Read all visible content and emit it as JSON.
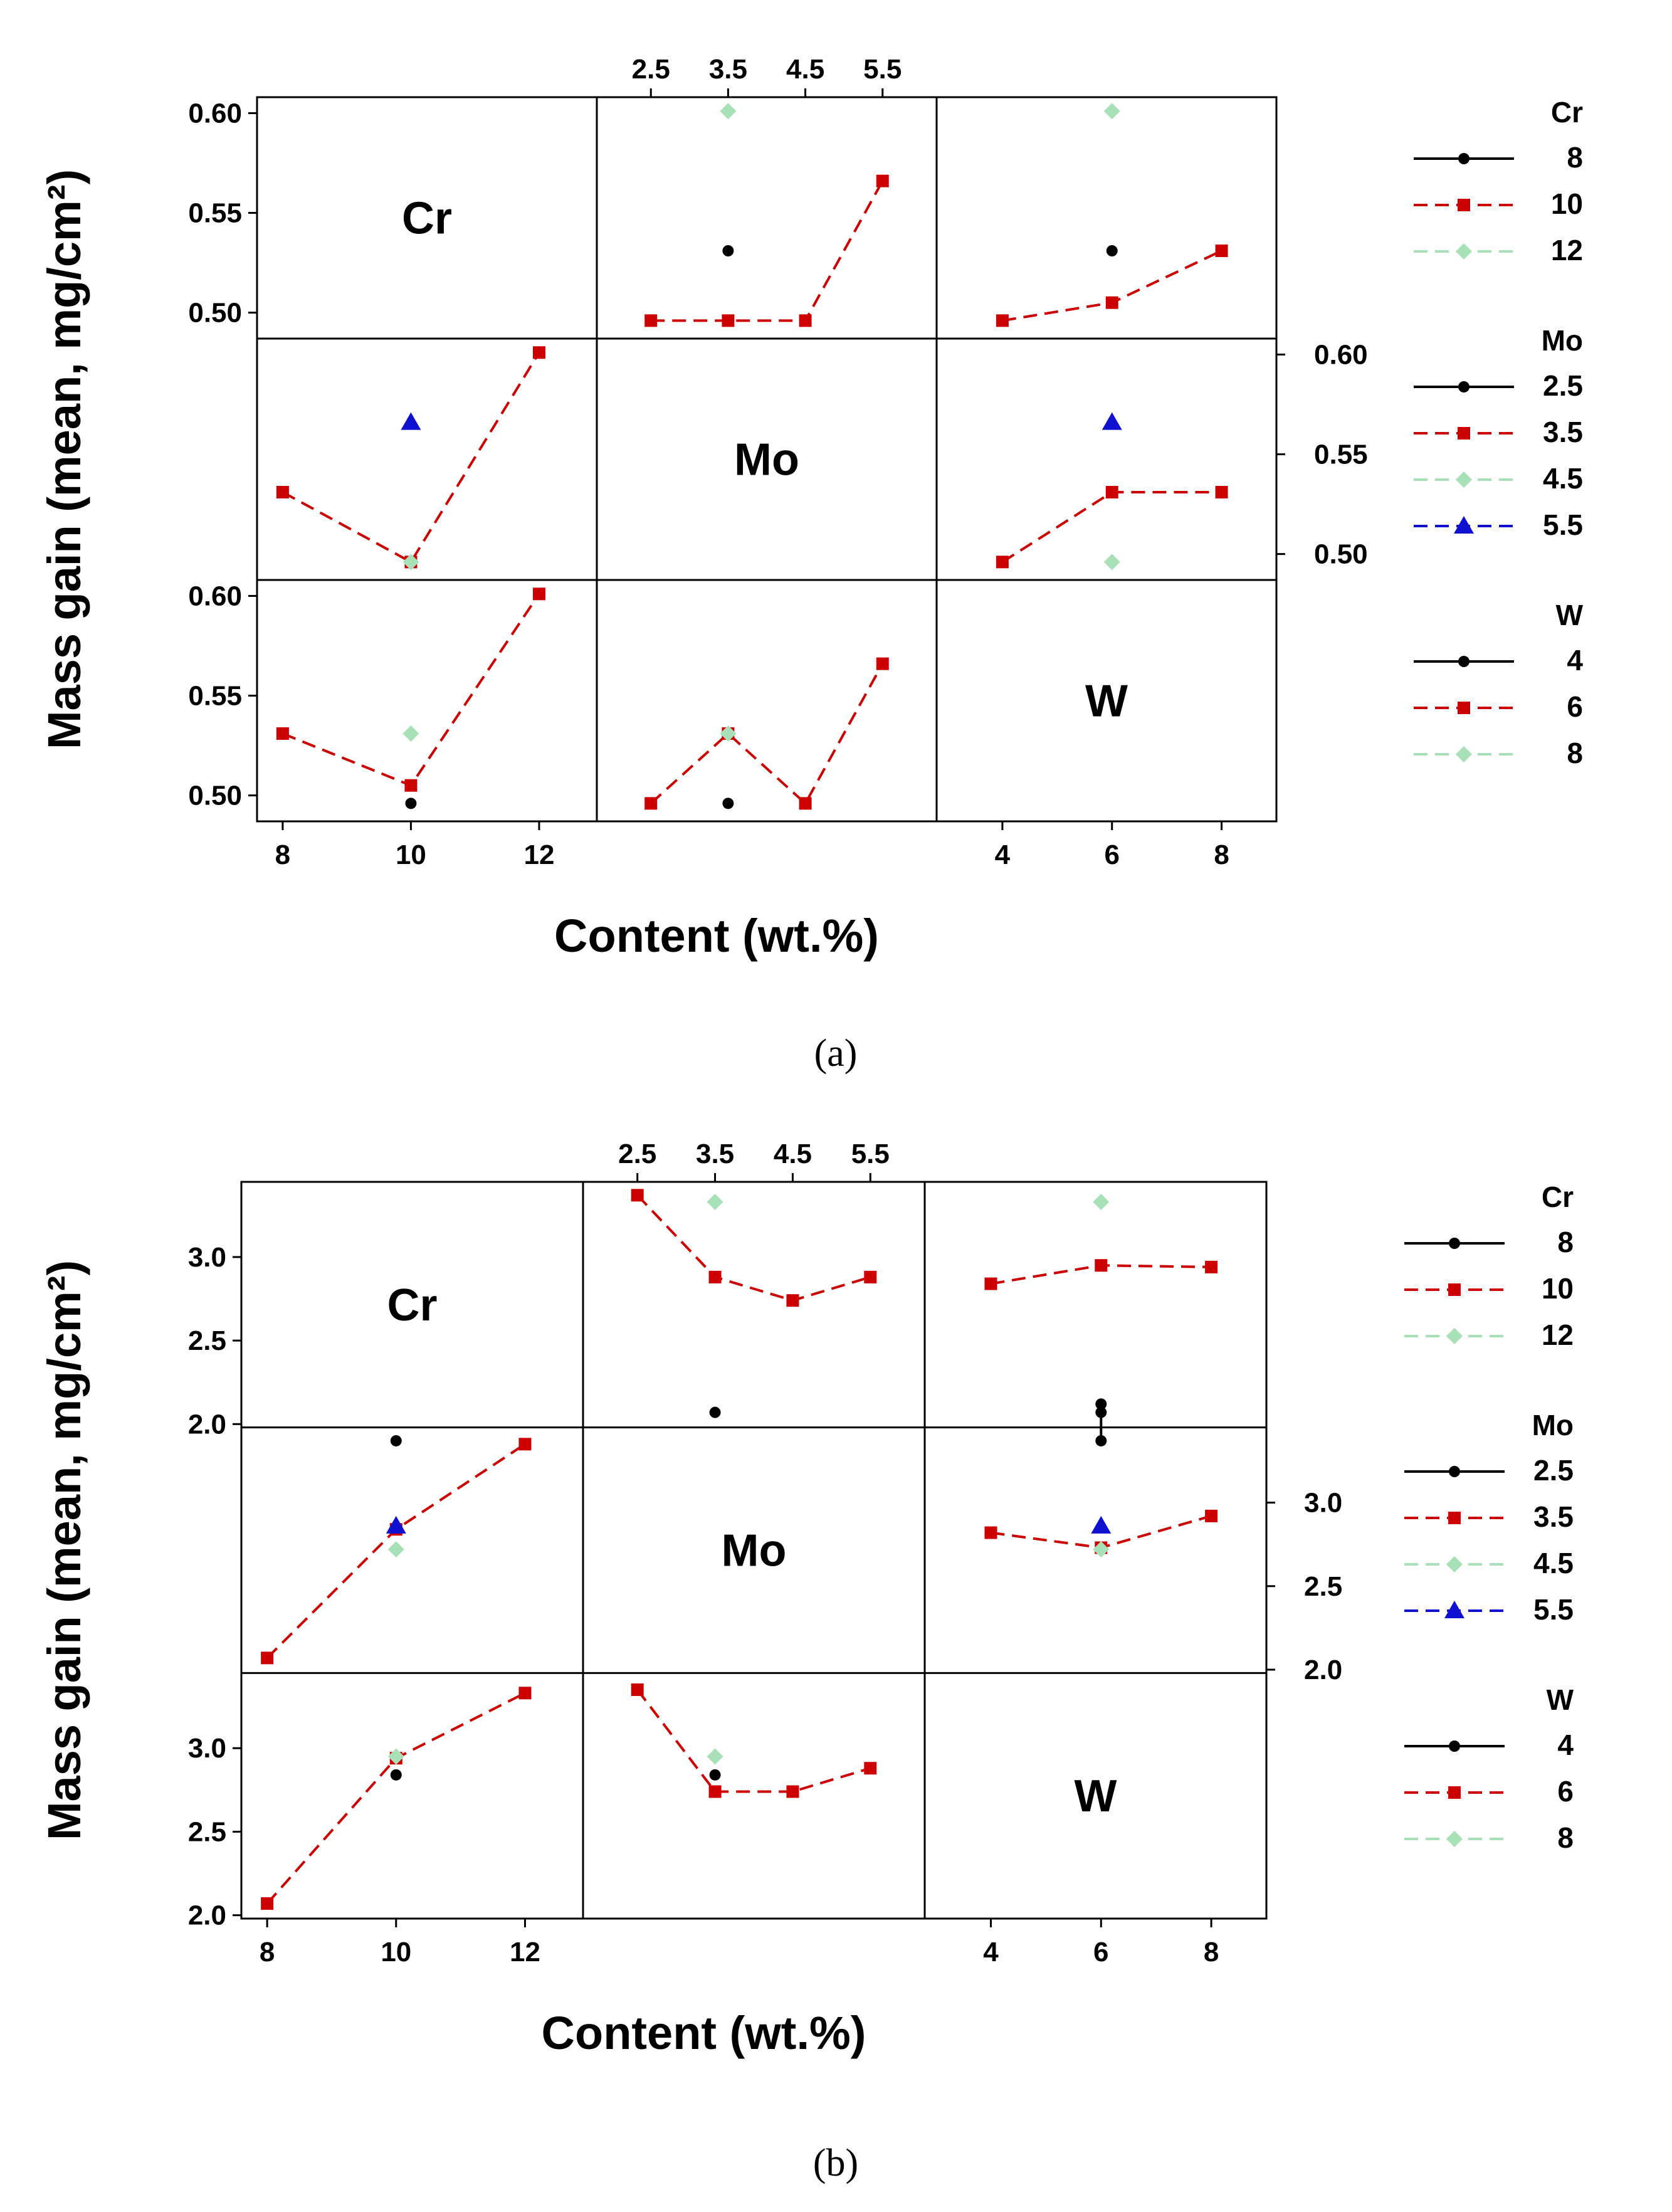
{
  "chart_data": [
    {
      "type": "line",
      "title": "",
      "caption": "(a)",
      "xlabel": "Content (wt.%)",
      "ylabel": "Mass gain (mean, mg/cm²)",
      "ylim": [
        0.487,
        0.608
      ],
      "left_ticks": [
        "0.60",
        "0.55",
        "0.50"
      ],
      "right_ticks": [
        "0.60",
        "0.55",
        "0.50"
      ],
      "tick_values": [
        0.6,
        0.55,
        0.5
      ],
      "factors": [
        "Cr",
        "Mo",
        "W"
      ],
      "levels": {
        "Cr": [
          "8",
          "10",
          "12"
        ],
        "Mo": [
          "2.5",
          "3.5",
          "4.5",
          "5.5"
        ],
        "W": [
          "4",
          "6",
          "8"
        ]
      },
      "panels": [
        {
          "row": "Cr",
          "col": "Mo",
          "series": [
            {
              "name": "8",
              "points": [
                [
                  3.5,
                  0.531
                ]
              ]
            },
            {
              "name": "10",
              "points": [
                [
                  2.5,
                  0.496
                ],
                [
                  3.5,
                  0.496
                ],
                [
                  4.5,
                  0.496
                ],
                [
                  5.5,
                  0.566
                ]
              ]
            },
            {
              "name": "12",
              "points": [
                [
                  3.5,
                  0.601
                ]
              ]
            }
          ]
        },
        {
          "row": "Cr",
          "col": "W",
          "series": [
            {
              "name": "8",
              "points": [
                [
                  6,
                  0.531
                ]
              ]
            },
            {
              "name": "10",
              "points": [
                [
                  4,
                  0.496
                ],
                [
                  6,
                  0.505
                ],
                [
                  8,
                  0.531
                ]
              ]
            },
            {
              "name": "12",
              "points": [
                [
                  6,
                  0.601
                ]
              ]
            }
          ]
        },
        {
          "row": "Mo",
          "col": "Cr",
          "series": [
            {
              "name": "3.5",
              "points": [
                [
                  8,
                  0.531
                ],
                [
                  10,
                  0.496
                ],
                [
                  12,
                  0.601
                ]
              ]
            },
            {
              "name": "4.5",
              "points": [
                [
                  10,
                  0.496
                ]
              ]
            },
            {
              "name": "5.5",
              "points": [
                [
                  10,
                  0.566
                ]
              ]
            }
          ]
        },
        {
          "row": "Mo",
          "col": "W",
          "series": [
            {
              "name": "3.5",
              "points": [
                [
                  4,
                  0.496
                ],
                [
                  6,
                  0.531
                ],
                [
                  8,
                  0.531
                ]
              ]
            },
            {
              "name": "4.5",
              "points": [
                [
                  6,
                  0.496
                ]
              ]
            },
            {
              "name": "5.5",
              "points": [
                [
                  6,
                  0.566
                ]
              ]
            }
          ]
        },
        {
          "row": "W",
          "col": "Cr",
          "series": [
            {
              "name": "4",
              "points": [
                [
                  10,
                  0.496
                ]
              ]
            },
            {
              "name": "6",
              "points": [
                [
                  8,
                  0.531
                ],
                [
                  10,
                  0.505
                ],
                [
                  12,
                  0.601
                ]
              ]
            },
            {
              "name": "8",
              "points": [
                [
                  10,
                  0.531
                ]
              ]
            }
          ]
        },
        {
          "row": "W",
          "col": "Mo",
          "series": [
            {
              "name": "4",
              "points": [
                [
                  3.5,
                  0.496
                ]
              ]
            },
            {
              "name": "6",
              "points": [
                [
                  2.5,
                  0.496
                ],
                [
                  3.5,
                  0.531
                ],
                [
                  4.5,
                  0.496
                ],
                [
                  5.5,
                  0.566
                ]
              ]
            },
            {
              "name": "8",
              "points": [
                [
                  3.5,
                  0.531
                ]
              ]
            }
          ]
        }
      ]
    },
    {
      "type": "line",
      "title": "",
      "caption": "(b)",
      "xlabel": "Content (wt.%)",
      "ylabel": "Mass gain (mean, mg/cm²)",
      "ylim": [
        1.98,
        3.45
      ],
      "left_ticks": [
        "3.0",
        "2.5",
        "2.0"
      ],
      "right_ticks": [
        "3.0",
        "2.5",
        "2.0"
      ],
      "tick_values": [
        3.0,
        2.5,
        2.0
      ],
      "factors": [
        "Cr",
        "Mo",
        "W"
      ],
      "levels": {
        "Cr": [
          "8",
          "10",
          "12"
        ],
        "Mo": [
          "2.5",
          "3.5",
          "4.5",
          "5.5"
        ],
        "W": [
          "4",
          "6",
          "8"
        ]
      },
      "panels": [
        {
          "row": "Cr",
          "col": "Mo",
          "series": [
            {
              "name": "8",
              "points": [
                [
                  3.5,
                  2.07
                ]
              ]
            },
            {
              "name": "10",
              "points": [
                [
                  2.5,
                  3.37
                ],
                [
                  3.5,
                  2.88
                ],
                [
                  4.5,
                  2.74
                ],
                [
                  5.5,
                  2.88
                ]
              ]
            },
            {
              "name": "12",
              "points": [
                [
                  3.5,
                  3.33
                ]
              ]
            }
          ]
        },
        {
          "row": "Cr",
          "col": "W",
          "series": [
            {
              "name": "8",
              "points": [
                [
                  6,
                  2.07
                ]
              ]
            },
            {
              "name": "10",
              "points": [
                [
                  4,
                  2.84
                ],
                [
                  6,
                  2.95
                ],
                [
                  8,
                  2.94
                ]
              ]
            },
            {
              "name": "12",
              "points": [
                [
                  6,
                  3.33
                ]
              ]
            }
          ]
        },
        {
          "row": "Mo",
          "col": "Cr",
          "series": [
            {
              "name": "2.5",
              "points": [
                [
                  10,
                  3.37
                ]
              ]
            },
            {
              "name": "3.5",
              "points": [
                [
                  8,
                  2.07
                ],
                [
                  10,
                  2.84
                ],
                [
                  12,
                  3.35
                ]
              ]
            },
            {
              "name": "4.5",
              "points": [
                [
                  10,
                  2.72
                ]
              ]
            },
            {
              "name": "5.5",
              "points": [
                [
                  10,
                  2.86
                ]
              ]
            }
          ]
        },
        {
          "row": "Mo",
          "col": "W",
          "series": [
            {
              "name": "2.5",
              "points": [
                [
                  6,
                  3.37
                ],
                [
                  6,
                  3.59
                ]
              ]
            },
            {
              "name": "3.5",
              "points": [
                [
                  4,
                  2.82
                ],
                [
                  6,
                  2.73
                ],
                [
                  8,
                  2.92
                ]
              ]
            },
            {
              "name": "4.5",
              "points": [
                [
                  6,
                  2.72
                ]
              ]
            },
            {
              "name": "5.5",
              "points": [
                [
                  6,
                  2.86
                ]
              ]
            }
          ]
        },
        {
          "row": "W",
          "col": "Cr",
          "series": [
            {
              "name": "4",
              "points": [
                [
                  10,
                  2.84
                ]
              ]
            },
            {
              "name": "6",
              "points": [
                [
                  8,
                  2.07
                ],
                [
                  10,
                  2.94
                ],
                [
                  12,
                  3.33
                ]
              ]
            },
            {
              "name": "8",
              "points": [
                [
                  10,
                  2.95
                ]
              ]
            }
          ]
        },
        {
          "row": "W",
          "col": "Mo",
          "series": [
            {
              "name": "4",
              "points": [
                [
                  3.5,
                  2.84
                ]
              ]
            },
            {
              "name": "6",
              "points": [
                [
                  2.5,
                  3.35
                ],
                [
                  3.5,
                  2.74
                ],
                [
                  4.5,
                  2.74
                ],
                [
                  5.5,
                  2.88
                ]
              ]
            },
            {
              "name": "8",
              "points": [
                [
                  3.5,
                  2.95
                ]
              ]
            }
          ]
        }
      ]
    }
  ],
  "legend": [
    {
      "title": "Cr",
      "items": [
        {
          "label": "8",
          "color": "#000000",
          "marker": "circle",
          "dash": "solid"
        },
        {
          "label": "10",
          "color": "#cc0000",
          "marker": "square",
          "dash": "dashed"
        },
        {
          "label": "12",
          "color": "#a8e0b8",
          "marker": "diamond",
          "dash": "dashed"
        }
      ]
    },
    {
      "title": "Mo",
      "items": [
        {
          "label": "2.5",
          "color": "#000000",
          "marker": "circle",
          "dash": "solid"
        },
        {
          "label": "3.5",
          "color": "#cc0000",
          "marker": "square",
          "dash": "dashed"
        },
        {
          "label": "4.5",
          "color": "#a8e0b8",
          "marker": "diamond",
          "dash": "dashed"
        },
        {
          "label": "5.5",
          "color": "#1010d0",
          "marker": "triangle",
          "dash": "dashed"
        }
      ]
    },
    {
      "title": "W",
      "items": [
        {
          "label": "4",
          "color": "#000000",
          "marker": "circle",
          "dash": "solid"
        },
        {
          "label": "6",
          "color": "#cc0000",
          "marker": "square",
          "dash": "dashed"
        },
        {
          "label": "8",
          "color": "#a8e0b8",
          "marker": "diamond",
          "dash": "dashed"
        }
      ]
    }
  ]
}
